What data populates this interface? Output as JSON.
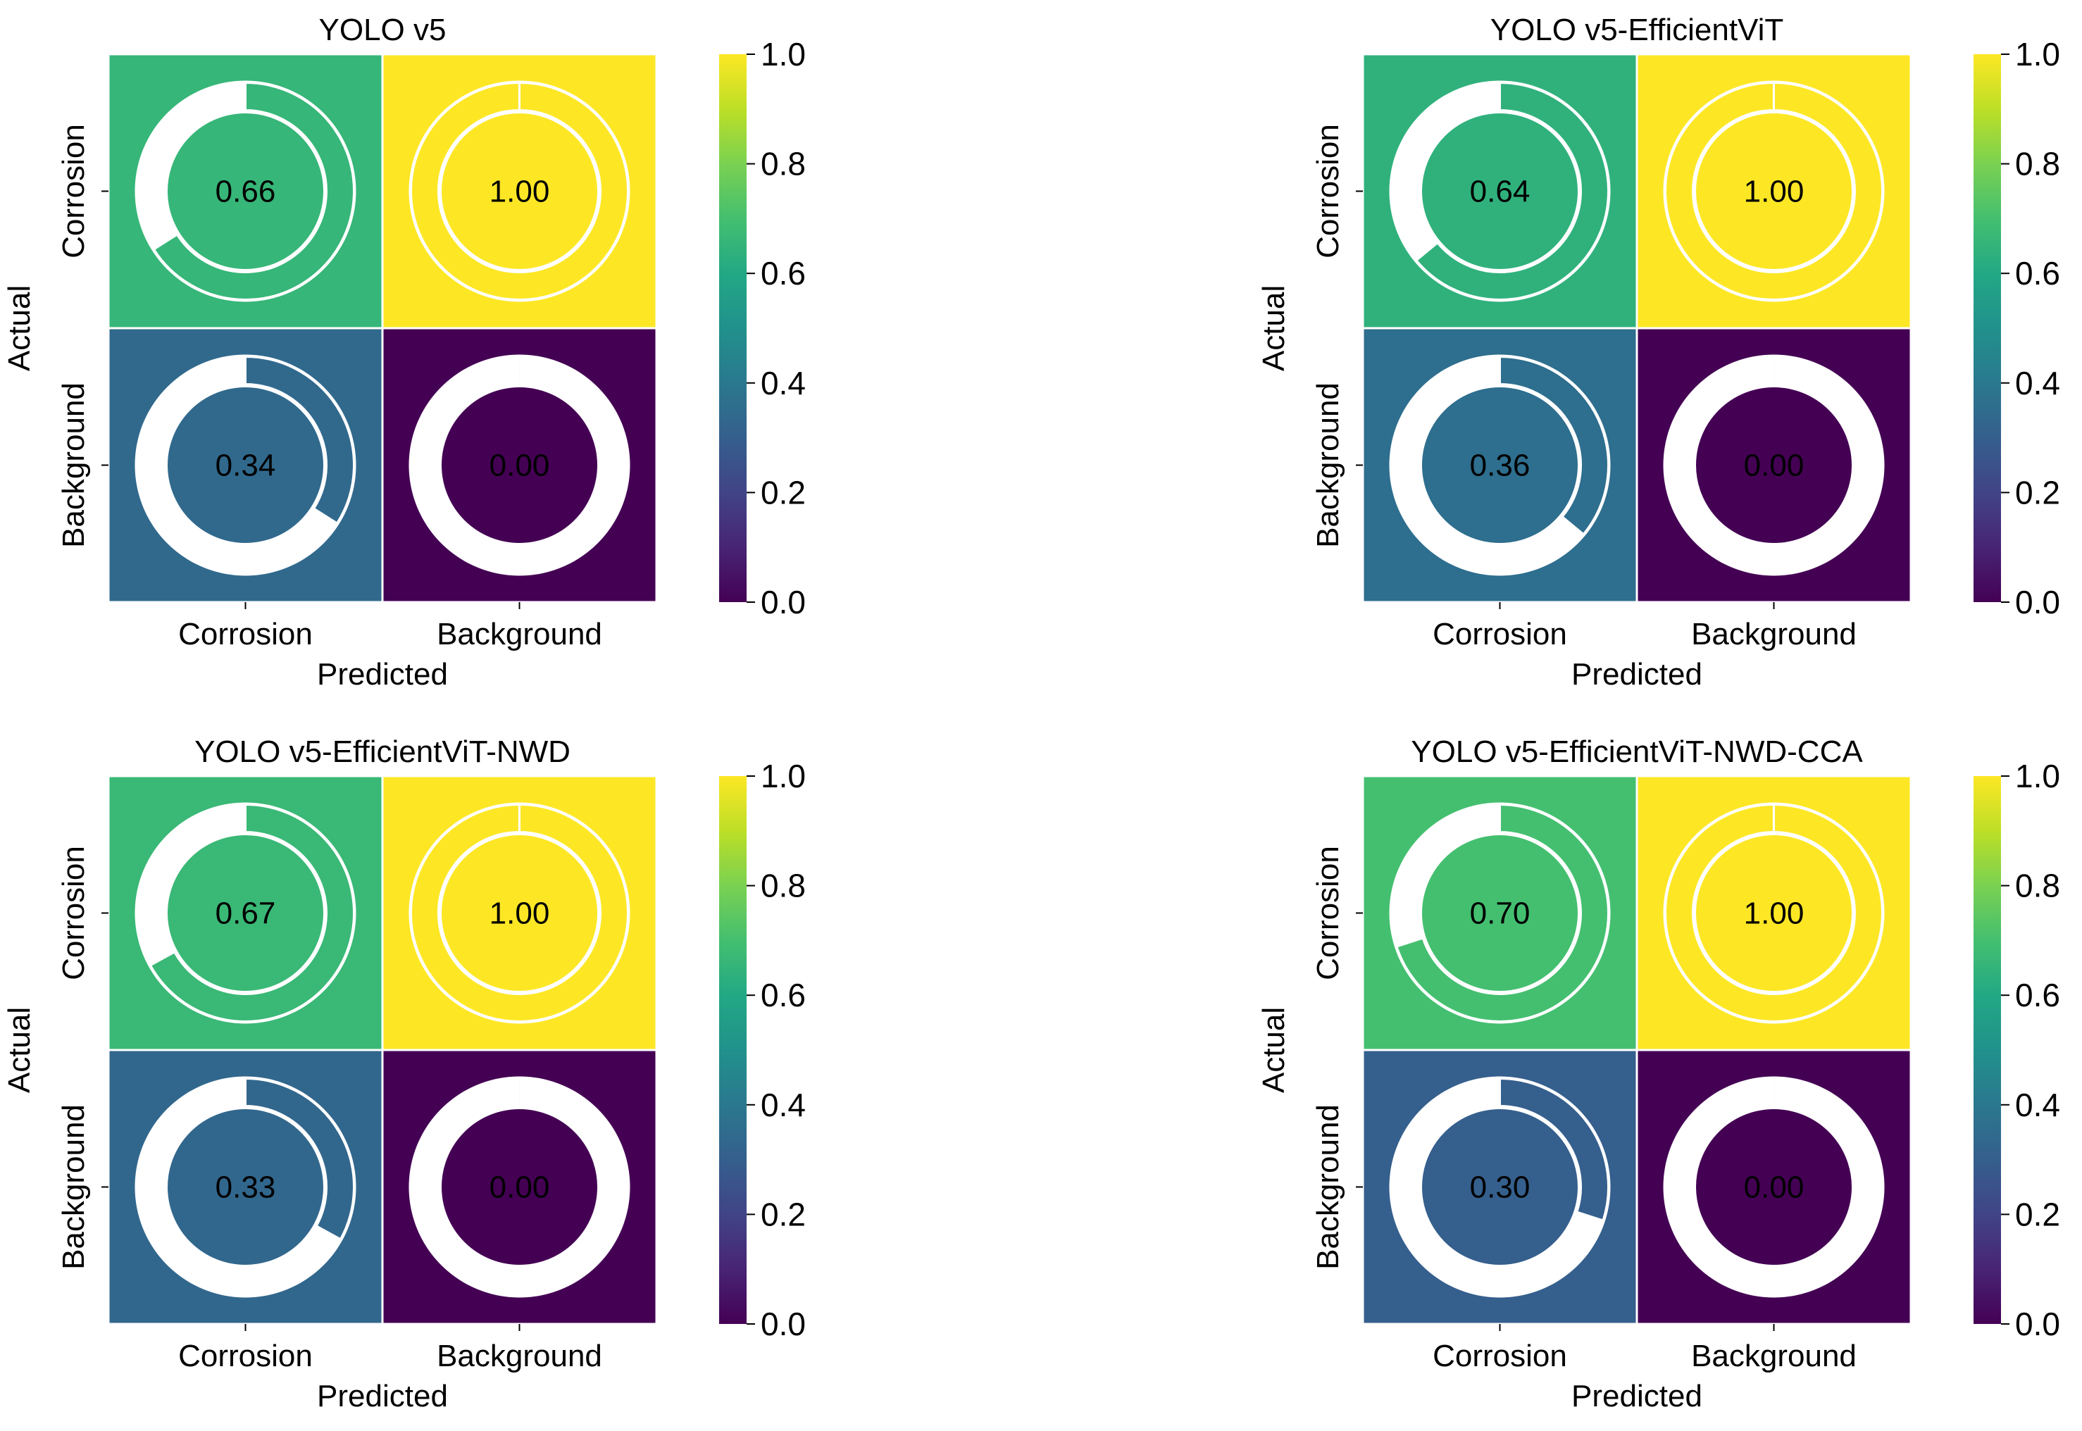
{
  "chart_data": [
    {
      "type": "heatmap",
      "title": "YOLO v5",
      "xlabel": "Predicted",
      "ylabel": "Actual",
      "x_tick_labels": [
        "Corrosion",
        "Background"
      ],
      "y_tick_labels": [
        "Corrosion",
        "Background"
      ],
      "values": [
        [
          0.66,
          1.0
        ],
        [
          0.34,
          0.0
        ]
      ],
      "cell_labels": [
        [
          "0.66",
          "1.00"
        ],
        [
          "0.34",
          "0.00"
        ]
      ],
      "colorbar": {
        "range": [
          0.0,
          1.0
        ],
        "ticks": [
          "0.0",
          "0.2",
          "0.4",
          "0.6",
          "0.8",
          "1.0"
        ],
        "colormap": "viridis"
      }
    },
    {
      "type": "heatmap",
      "title": "YOLO v5-EfficientViT",
      "xlabel": "Predicted",
      "ylabel": "Actual",
      "x_tick_labels": [
        "Corrosion",
        "Background"
      ],
      "y_tick_labels": [
        "Corrosion",
        "Background"
      ],
      "values": [
        [
          0.64,
          1.0
        ],
        [
          0.36,
          0.0
        ]
      ],
      "cell_labels": [
        [
          "0.64",
          "1.00"
        ],
        [
          "0.36",
          "0.00"
        ]
      ],
      "colorbar": {
        "range": [
          0.0,
          1.0
        ],
        "ticks": [
          "0.0",
          "0.2",
          "0.4",
          "0.6",
          "0.8",
          "1.0"
        ],
        "colormap": "viridis"
      }
    },
    {
      "type": "heatmap",
      "title": "YOLO v5-EfficientViT-NWD",
      "xlabel": "Predicted",
      "ylabel": "Actual",
      "x_tick_labels": [
        "Corrosion",
        "Background"
      ],
      "y_tick_labels": [
        "Corrosion",
        "Background"
      ],
      "values": [
        [
          0.67,
          1.0
        ],
        [
          0.33,
          0.0
        ]
      ],
      "cell_labels": [
        [
          "0.67",
          "1.00"
        ],
        [
          "0.33",
          "0.00"
        ]
      ],
      "colorbar": {
        "range": [
          0.0,
          1.0
        ],
        "ticks": [
          "0.0",
          "0.2",
          "0.4",
          "0.6",
          "0.8",
          "1.0"
        ],
        "colormap": "viridis"
      }
    },
    {
      "type": "heatmap",
      "title": "YOLO v5-EfficientViT-NWD-CCA",
      "xlabel": "Predicted",
      "ylabel": "Actual",
      "x_tick_labels": [
        "Corrosion",
        "Background"
      ],
      "y_tick_labels": [
        "Corrosion",
        "Background"
      ],
      "values": [
        [
          0.7,
          1.0
        ],
        [
          0.3,
          0.0
        ]
      ],
      "cell_labels": [
        [
          "0.70",
          "1.00"
        ],
        [
          "0.30",
          "0.00"
        ]
      ],
      "colorbar": {
        "range": [
          0.0,
          1.0
        ],
        "ticks": [
          "0.0",
          "0.2",
          "0.4",
          "0.6",
          "0.8",
          "1.0"
        ],
        "colormap": "viridis"
      }
    }
  ]
}
